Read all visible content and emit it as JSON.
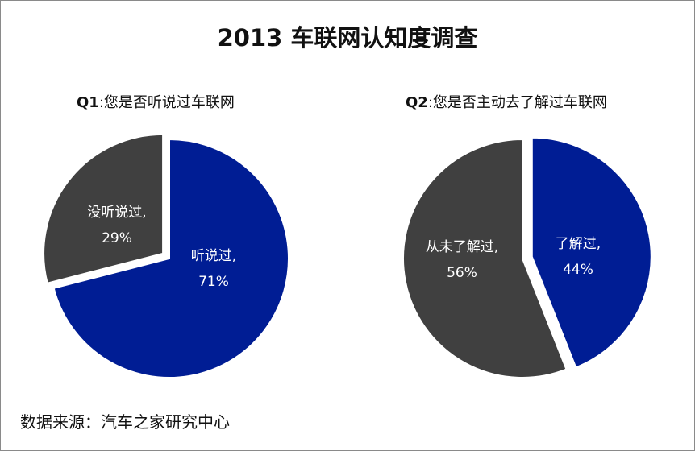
{
  "title": "2013 车联网认知度调查",
  "source": "数据来源：汽车之家研究中心",
  "colors": {
    "blue": "#001D94",
    "dark": "#404040",
    "label": "#ffffff"
  },
  "chart_data": [
    {
      "type": "pie",
      "title_prefix": "Q1",
      "title_text": ":您是否听说过车联网",
      "slices": [
        {
          "label": "听说过,",
          "value_label": "71%",
          "value": 71,
          "color": "#001D94",
          "exploded": false
        },
        {
          "label": "没听说过,",
          "value_label": "29%",
          "value": 29,
          "color": "#404040",
          "exploded": true
        }
      ]
    },
    {
      "type": "pie",
      "title_prefix": "Q2",
      "title_text": ":您是否主动去了解过车联网",
      "slices": [
        {
          "label": "了解过,",
          "value_label": "44%",
          "value": 44,
          "color": "#001D94",
          "exploded": true
        },
        {
          "label": "从未了解过,",
          "value_label": "56%",
          "value": 56,
          "color": "#404040",
          "exploded": false
        }
      ]
    }
  ]
}
